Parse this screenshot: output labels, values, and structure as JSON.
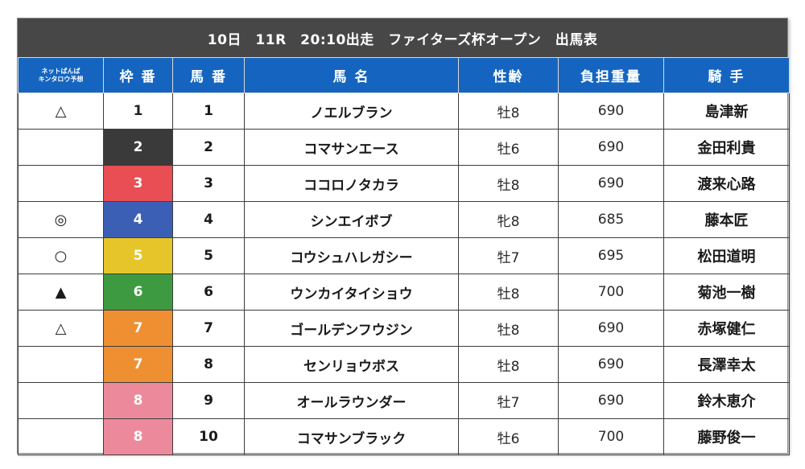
{
  "title": "10日　11R　20:10出走　ファイターズ杯オープン　出馬表",
  "headers": {
    "yoso_line1": "ネットばんば",
    "yoso_line2": "キンタロウ予想",
    "waku": "枠 番",
    "umaban": "馬 番",
    "name": "馬 名",
    "sexage": "性齢",
    "weight": "負担重量",
    "jockey": "騎 手"
  },
  "waku_colors": {
    "1": "#ffffff",
    "2": "#3a3a3a",
    "3": "#e84e53",
    "4": "#3b5fb5",
    "5": "#e6c52a",
    "6": "#3e9a41",
    "7": "#ee8f32",
    "8": "#ec8a9c"
  },
  "rows": [
    {
      "mark": "△",
      "waku": "1",
      "umaban": "1",
      "name": "ノエルブラン",
      "sexage": "牡8",
      "weight": "690",
      "jockey": "島津新"
    },
    {
      "mark": "",
      "waku": "2",
      "umaban": "2",
      "name": "コマサンエース",
      "sexage": "牡6",
      "weight": "690",
      "jockey": "金田利貴"
    },
    {
      "mark": "",
      "waku": "3",
      "umaban": "3",
      "name": "ココロノタカラ",
      "sexage": "牡8",
      "weight": "690",
      "jockey": "渡来心路"
    },
    {
      "mark": "◎",
      "waku": "4",
      "umaban": "4",
      "name": "シンエイボブ",
      "sexage": "牝8",
      "weight": "685",
      "jockey": "藤本匠"
    },
    {
      "mark": "○",
      "waku": "5",
      "umaban": "5",
      "name": "コウシュハレガシー",
      "sexage": "牡7",
      "weight": "695",
      "jockey": "松田道明"
    },
    {
      "mark": "▲",
      "waku": "6",
      "umaban": "6",
      "name": "ウンカイタイショウ",
      "sexage": "牡8",
      "weight": "700",
      "jockey": "菊池一樹"
    },
    {
      "mark": "△",
      "waku": "7",
      "umaban": "7",
      "name": "ゴールデンフウジン",
      "sexage": "牡8",
      "weight": "690",
      "jockey": "赤塚健仁"
    },
    {
      "mark": "",
      "waku": "7",
      "umaban": "8",
      "name": "センリョウボス",
      "sexage": "牡8",
      "weight": "690",
      "jockey": "長澤幸太"
    },
    {
      "mark": "",
      "waku": "8",
      "umaban": "9",
      "name": "オールラウンダー",
      "sexage": "牡7",
      "weight": "690",
      "jockey": "鈴木恵介"
    },
    {
      "mark": "",
      "waku": "8",
      "umaban": "10",
      "name": "コマサンブラック",
      "sexage": "牡6",
      "weight": "700",
      "jockey": "藤野俊一"
    }
  ]
}
